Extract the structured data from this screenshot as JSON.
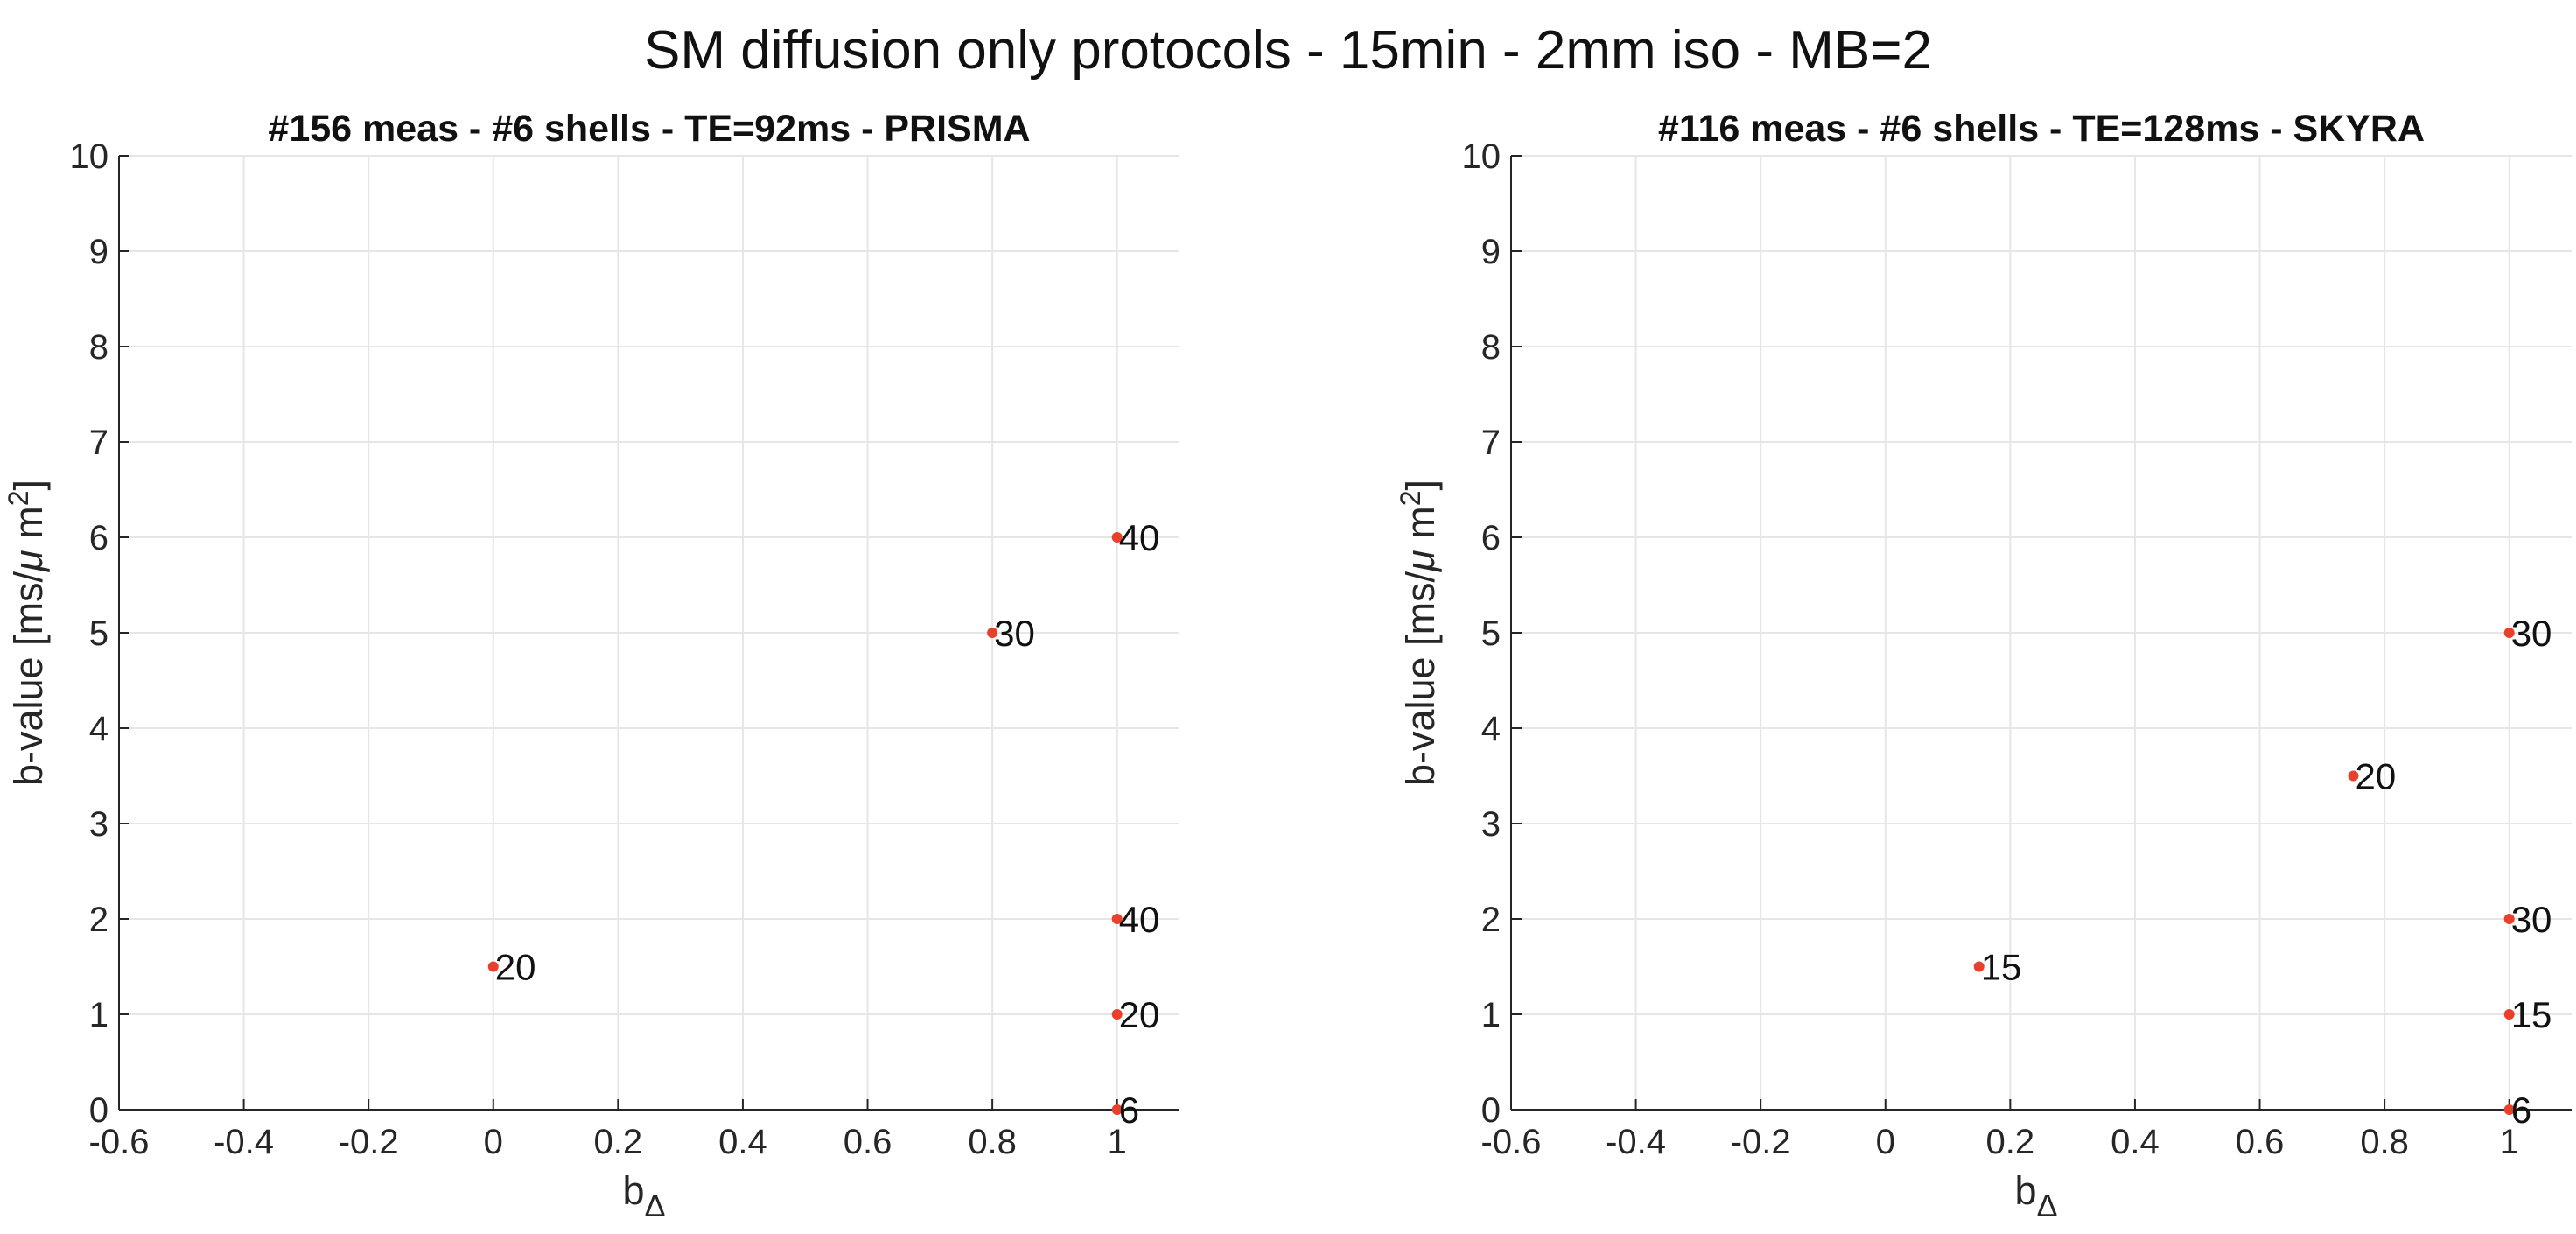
{
  "figure": {
    "suptitle": "SM diffusion only protocols - 15min - 2mm iso - MB=2"
  },
  "style": {
    "marker_color": "#e8402a",
    "grid_color": "#e6e6e6",
    "axis_color": "#262626"
  },
  "chart_data": [
    {
      "type": "scatter",
      "title": "#156 meas -  #6 shells - TE=92ms - PRISMA",
      "xlabel": "b",
      "xlabel_subscript": "Δ",
      "ylabel_prefix": "b-value [ms/",
      "ylabel_mu": "μ",
      "ylabel_suffix": " m",
      "ylabel_sup": "2",
      "ylabel_close": "]",
      "xlim": [
        -0.6,
        1.1
      ],
      "ylim": [
        0,
        10
      ],
      "xticks": [
        -0.6,
        -0.4,
        -0.2,
        0,
        0.2,
        0.4,
        0.6,
        0.8,
        1
      ],
      "xtick_labels": [
        "-0.6",
        "-0.4",
        "-0.2",
        "0",
        "0.2",
        "0.4",
        "0.6",
        "0.8",
        "1"
      ],
      "yticks": [
        0,
        1,
        2,
        3,
        4,
        5,
        6,
        7,
        8,
        9,
        10
      ],
      "ytick_labels": [
        "0",
        "1",
        "2",
        "3",
        "4",
        "5",
        "6",
        "7",
        "8",
        "9",
        "10"
      ],
      "grid": true,
      "points": [
        {
          "x": 0,
          "y": 1.5,
          "label": "20"
        },
        {
          "x": 0.8,
          "y": 5,
          "label": "30"
        },
        {
          "x": 1,
          "y": 6,
          "label": "40"
        },
        {
          "x": 1,
          "y": 2,
          "label": "40"
        },
        {
          "x": 1,
          "y": 1,
          "label": "20"
        },
        {
          "x": 1,
          "y": 0,
          "label": "6"
        }
      ]
    },
    {
      "type": "scatter",
      "title": "#116 meas -  #6 shells - TE=128ms - SKYRA",
      "xlabel": "b",
      "xlabel_subscript": "Δ",
      "ylabel_prefix": "b-value [ms/",
      "ylabel_mu": "μ",
      "ylabel_suffix": " m",
      "ylabel_sup": "2",
      "ylabel_close": "]",
      "xlim": [
        -0.6,
        1.1
      ],
      "ylim": [
        0,
        10
      ],
      "xticks": [
        -0.6,
        -0.4,
        -0.2,
        0,
        0.2,
        0.4,
        0.6,
        0.8,
        1
      ],
      "xtick_labels": [
        "-0.6",
        "-0.4",
        "-0.2",
        "0",
        "0.2",
        "0.4",
        "0.6",
        "0.8",
        "1"
      ],
      "yticks": [
        0,
        1,
        2,
        3,
        4,
        5,
        6,
        7,
        8,
        9,
        10
      ],
      "ytick_labels": [
        "0",
        "1",
        "2",
        "3",
        "4",
        "5",
        "6",
        "7",
        "8",
        "9",
        "10"
      ],
      "grid": true,
      "points": [
        {
          "x": 0.15,
          "y": 1.5,
          "label": "15"
        },
        {
          "x": 0.75,
          "y": 3.5,
          "label": "20"
        },
        {
          "x": 1,
          "y": 5,
          "label": "30"
        },
        {
          "x": 1,
          "y": 2,
          "label": "30"
        },
        {
          "x": 1,
          "y": 1,
          "label": "15"
        },
        {
          "x": 1,
          "y": 0,
          "label": "6"
        }
      ]
    }
  ]
}
